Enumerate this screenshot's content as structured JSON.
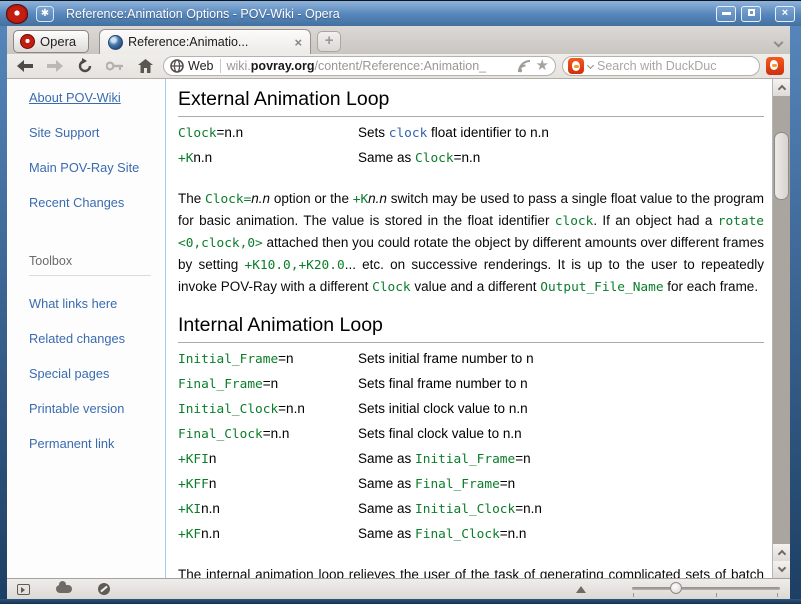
{
  "window": {
    "title": "Reference:Animation Options - POV-Wiki - Opera",
    "controls": {
      "minimize": "minimize",
      "maximize": "maximize",
      "close": "×"
    }
  },
  "tab_bar": {
    "opera_button_label": "Opera",
    "active_tab": {
      "title": "Reference:Animatio...",
      "close": "×"
    },
    "new_tab_label": "+"
  },
  "toolbar": {
    "web_badge": "Web",
    "url": {
      "prefix": "wiki.",
      "domain": "povray.org",
      "path": "/content/Reference:Animation_"
    },
    "star_icon": "★",
    "search": {
      "placeholder": "Search with DuckDuck"
    }
  },
  "sidebar": {
    "links_top": [
      "About POV-Wiki",
      "Site Support",
      "Main POV-Ray Site",
      "Recent Changes"
    ],
    "toolbox": {
      "heading": "Toolbox",
      "links": [
        "What links here",
        "Related changes",
        "Special pages",
        "Printable version",
        "Permanent link"
      ]
    }
  },
  "content": {
    "sections": [
      {
        "heading": "External Animation Loop",
        "rows": [
          {
            "term": [
              {
                "t": "Clock",
                "s": "g"
              },
              {
                "t": "=n.n",
                "s": "p"
              }
            ],
            "desc": [
              {
                "t": "Sets ",
                "s": "p"
              },
              {
                "t": "clock",
                "s": "b"
              },
              {
                "t": " float identifier to n.n",
                "s": "p"
              }
            ]
          },
          {
            "term": [
              {
                "t": "+K",
                "s": "g"
              },
              {
                "t": "n.n",
                "s": "p"
              }
            ],
            "desc": [
              {
                "t": "Same as ",
                "s": "p"
              },
              {
                "t": "Clock",
                "s": "g"
              },
              {
                "t": "=n.n",
                "s": "p"
              }
            ]
          }
        ],
        "paragraphs": [
          [
            {
              "t": "The ",
              "s": "p"
            },
            {
              "t": "Clock=",
              "s": "g"
            },
            {
              "t": "n.n",
              "s": "i"
            },
            {
              "t": " option or the ",
              "s": "p"
            },
            {
              "t": "+K",
              "s": "g"
            },
            {
              "t": "n.n",
              "s": "i"
            },
            {
              "t": " switch may be used to pass a single float value to the program for basic animation. The value is stored in the float identifier ",
              "s": "p"
            },
            {
              "t": "clock",
              "s": "g"
            },
            {
              "t": ". If an object had a ",
              "s": "p"
            },
            {
              "t": "rotate <0,clock,0>",
              "s": "g"
            },
            {
              "t": " attached then you could rotate the object by different amounts over different frames by setting ",
              "s": "p"
            },
            {
              "t": "+K10.0,+K20.0",
              "s": "g"
            },
            {
              "t": "... etc. on successive renderings. It is up to the user to repeatedly invoke POV-Ray with a different ",
              "s": "p"
            },
            {
              "t": "Clock",
              "s": "g"
            },
            {
              "t": " value and a different ",
              "s": "p"
            },
            {
              "t": "Output_File_Name",
              "s": "g"
            },
            {
              "t": " for each frame.",
              "s": "p"
            }
          ]
        ]
      },
      {
        "heading": "Internal Animation Loop",
        "rows": [
          {
            "term": [
              {
                "t": "Initial_Frame",
                "s": "g"
              },
              {
                "t": "=n",
                "s": "p"
              }
            ],
            "desc": [
              {
                "t": "Sets initial frame number to n",
                "s": "p"
              }
            ]
          },
          {
            "term": [
              {
                "t": "Final_Frame",
                "s": "g"
              },
              {
                "t": "=n",
                "s": "p"
              }
            ],
            "desc": [
              {
                "t": "Sets final frame number to n",
                "s": "p"
              }
            ]
          },
          {
            "term": [
              {
                "t": "Initial_Clock",
                "s": "g"
              },
              {
                "t": "=n.n",
                "s": "p"
              }
            ],
            "desc": [
              {
                "t": "Sets initial clock value to n.n",
                "s": "p"
              }
            ]
          },
          {
            "term": [
              {
                "t": "Final_Clock",
                "s": "g"
              },
              {
                "t": "=n.n",
                "s": "p"
              }
            ],
            "desc": [
              {
                "t": "Sets final clock value to n.n",
                "s": "p"
              }
            ]
          },
          {
            "term": [
              {
                "t": "+KFI",
                "s": "g"
              },
              {
                "t": "n",
                "s": "p"
              }
            ],
            "desc": [
              {
                "t": "Same as ",
                "s": "p"
              },
              {
                "t": "Initial_Frame",
                "s": "g"
              },
              {
                "t": "=n",
                "s": "p"
              }
            ]
          },
          {
            "term": [
              {
                "t": "+KFF",
                "s": "g"
              },
              {
                "t": "n",
                "s": "p"
              }
            ],
            "desc": [
              {
                "t": "Same as ",
                "s": "p"
              },
              {
                "t": "Final_Frame",
                "s": "g"
              },
              {
                "t": "=n",
                "s": "p"
              }
            ]
          },
          {
            "term": [
              {
                "t": "+KI",
                "s": "g"
              },
              {
                "t": "n.n",
                "s": "p"
              }
            ],
            "desc": [
              {
                "t": "Same as ",
                "s": "p"
              },
              {
                "t": "Initial_Clock",
                "s": "g"
              },
              {
                "t": "=n.n",
                "s": "p"
              }
            ]
          },
          {
            "term": [
              {
                "t": "+KF",
                "s": "g"
              },
              {
                "t": "n.n",
                "s": "p"
              }
            ],
            "desc": [
              {
                "t": "Same as ",
                "s": "p"
              },
              {
                "t": "Final_Clock",
                "s": "g"
              },
              {
                "t": "=n.n",
                "s": "p"
              }
            ]
          }
        ],
        "paragraphs": [
          [
            {
              "t": "The internal animation loop relieves the user of the task of generating complicated sets of batch files to invoke POV-Ray multiple times with different settings. While the multitude of options may look",
              "s": "p"
            }
          ]
        ]
      }
    ]
  },
  "colors": {
    "code_green": "#0b7d2a",
    "code_blue": "#3263b0",
    "link_blue": "#3a6bb0",
    "titlebar_blue": "#5585bb",
    "opera_red": "#c41e12"
  }
}
